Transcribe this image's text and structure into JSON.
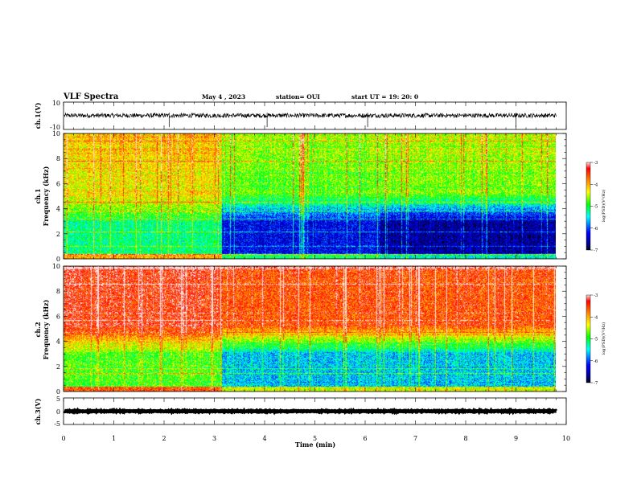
{
  "header": {
    "title": "VLF Spectra",
    "date": "May 4 , 2023",
    "station": "station= OUI",
    "start": "start  UT =   19: 20: 0"
  },
  "colors": {
    "colormap": [
      "#000080",
      "#0000ff",
      "#00ffff",
      "#00ff00",
      "#ffff00",
      "#ff8000",
      "#ff0000",
      "#ffffff"
    ],
    "line": "#000000"
  },
  "chart_data": [
    {
      "type": "line",
      "panel": "ch1-waveform",
      "ylabel": "ch.1(V)",
      "ylim": [
        -10,
        10
      ],
      "yticks": [
        "10",
        "-10"
      ],
      "trace": {
        "offset": 0.2,
        "noise_amplitude": 1.6,
        "spikes_min": [
          2.1,
          4.05,
          6.05,
          9.0
        ]
      }
    },
    {
      "type": "heatmap",
      "panel": "ch1-spectrogram",
      "ylabel_line1": "ch.1",
      "ylabel_line2": "Frequency  (kHz)",
      "ylim": [
        0,
        10
      ],
      "yticks": [
        "0",
        "2",
        "4",
        "6",
        "8",
        "10"
      ],
      "colorbar": {
        "label": "log(PSD)(V²/Hz)",
        "range": [
          -7,
          -3
        ],
        "ticks": [
          "-3",
          "-4",
          "-5",
          "-6",
          "-7"
        ]
      },
      "segments": [
        {
          "t_start_min": 0.0,
          "t_end_min": 3.15,
          "low_band_level": -5.2,
          "high_band_level": -4.3
        },
        {
          "t_start_min": 3.15,
          "t_end_min": 6.3,
          "low_band_level": -6.3,
          "high_band_level": -4.8
        },
        {
          "t_start_min": 6.3,
          "t_end_min": 9.8,
          "low_band_level": -6.6,
          "high_band_level": -4.7
        }
      ]
    },
    {
      "type": "heatmap",
      "panel": "ch2-spectrogram",
      "ylabel_line1": "ch.2",
      "ylabel_line2": "Frequency  (kHz)",
      "ylim": [
        0,
        10
      ],
      "yticks": [
        "0",
        "2",
        "4",
        "6",
        "8",
        "10"
      ],
      "colorbar": {
        "label": "log(PSD)(V²/Hz)",
        "range": [
          -7,
          -3
        ],
        "ticks": [
          "-3",
          "-4",
          "-5",
          "-6",
          "-7"
        ]
      },
      "segments": [
        {
          "t_start_min": 0.0,
          "t_end_min": 3.15,
          "low_band_level": -4.8,
          "high_band_level": -3.4
        },
        {
          "t_start_min": 3.15,
          "t_end_min": 9.8,
          "low_band_level": -5.6,
          "high_band_level": -3.6
        }
      ]
    },
    {
      "type": "line",
      "panel": "ch3-waveform",
      "ylabel": "ch.3(V)",
      "ylim": [
        -5,
        5
      ],
      "yticks": [
        "5",
        "0",
        "-5"
      ],
      "trace": {
        "offset": 0.0,
        "noise_amplitude": 0.15
      }
    }
  ],
  "xaxis": {
    "label": "Time  (min)",
    "xlim": [
      0,
      10
    ],
    "data_end": 9.8,
    "ticks": [
      "0",
      "1",
      "2",
      "3",
      "4",
      "5",
      "6",
      "7",
      "8",
      "9",
      "10"
    ]
  }
}
